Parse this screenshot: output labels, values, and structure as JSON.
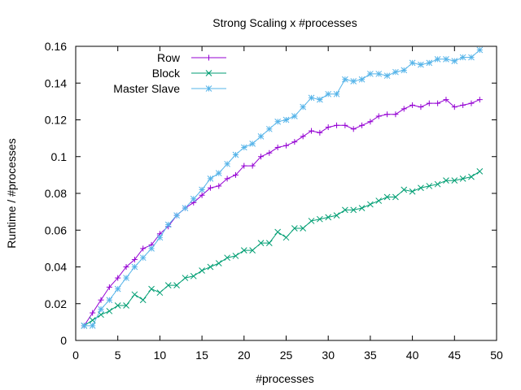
{
  "chart_data": {
    "type": "line",
    "title": "Strong Scaling x #processes",
    "xlabel": "#processes",
    "ylabel": "Runtime / #processes",
    "xlim": [
      0,
      50
    ],
    "ylim": [
      0,
      0.16
    ],
    "xticks": [
      0,
      5,
      10,
      15,
      20,
      25,
      30,
      35,
      40,
      45,
      50
    ],
    "yticks": [
      0,
      0.02,
      0.04,
      0.06,
      0.08,
      0.1,
      0.12,
      0.14,
      0.16
    ],
    "xtick_labels": [
      "0",
      "5",
      "10",
      "15",
      "20",
      "25",
      "30",
      "35",
      "40",
      "45",
      "50"
    ],
    "ytick_labels": [
      "0",
      "0.02",
      "0.04",
      "0.06",
      "0.08",
      "0.1",
      "0.12",
      "0.14",
      "0.16"
    ],
    "grid": false,
    "legend_position": "top-left",
    "x": [
      1,
      2,
      3,
      4,
      5,
      6,
      7,
      8,
      9,
      10,
      11,
      12,
      13,
      14,
      15,
      16,
      17,
      18,
      19,
      20,
      21,
      22,
      23,
      24,
      25,
      26,
      27,
      28,
      29,
      30,
      31,
      32,
      33,
      34,
      35,
      36,
      37,
      38,
      39,
      40,
      41,
      42,
      43,
      44,
      45,
      46,
      47,
      48
    ],
    "series": [
      {
        "name": "Row",
        "color": "#9400d3",
        "marker": "plus",
        "values": [
          0.008,
          0.015,
          0.022,
          0.029,
          0.034,
          0.04,
          0.044,
          0.05,
          0.052,
          0.058,
          0.062,
          0.068,
          0.072,
          0.075,
          0.079,
          0.083,
          0.084,
          0.088,
          0.09,
          0.095,
          0.095,
          0.1,
          0.102,
          0.105,
          0.106,
          0.108,
          0.111,
          0.114,
          0.113,
          0.116,
          0.117,
          0.117,
          0.115,
          0.117,
          0.119,
          0.122,
          0.123,
          0.123,
          0.126,
          0.128,
          0.127,
          0.129,
          0.129,
          0.131,
          0.127,
          0.128,
          0.129,
          0.131
        ]
      },
      {
        "name": "Block",
        "color": "#009e73",
        "marker": "cross",
        "values": [
          0.008,
          0.011,
          0.014,
          0.016,
          0.019,
          0.019,
          0.025,
          0.022,
          0.028,
          0.026,
          0.03,
          0.03,
          0.034,
          0.035,
          0.038,
          0.04,
          0.042,
          0.045,
          0.046,
          0.049,
          0.049,
          0.053,
          0.053,
          0.059,
          0.056,
          0.061,
          0.061,
          0.065,
          0.066,
          0.067,
          0.068,
          0.071,
          0.071,
          0.072,
          0.074,
          0.076,
          0.078,
          0.078,
          0.082,
          0.081,
          0.083,
          0.084,
          0.085,
          0.087,
          0.087,
          0.088,
          0.089,
          0.092
        ]
      },
      {
        "name": "Master Slave",
        "color": "#56b4e9",
        "marker": "star",
        "values": [
          0.008,
          0.008,
          0.017,
          0.022,
          0.028,
          0.034,
          0.04,
          0.045,
          0.05,
          0.056,
          0.063,
          0.068,
          0.072,
          0.077,
          0.082,
          0.088,
          0.091,
          0.096,
          0.101,
          0.105,
          0.107,
          0.111,
          0.115,
          0.119,
          0.12,
          0.122,
          0.127,
          0.132,
          0.131,
          0.134,
          0.134,
          0.142,
          0.141,
          0.142,
          0.145,
          0.145,
          0.144,
          0.146,
          0.147,
          0.151,
          0.15,
          0.151,
          0.153,
          0.153,
          0.152,
          0.154,
          0.154,
          0.158
        ]
      }
    ]
  }
}
